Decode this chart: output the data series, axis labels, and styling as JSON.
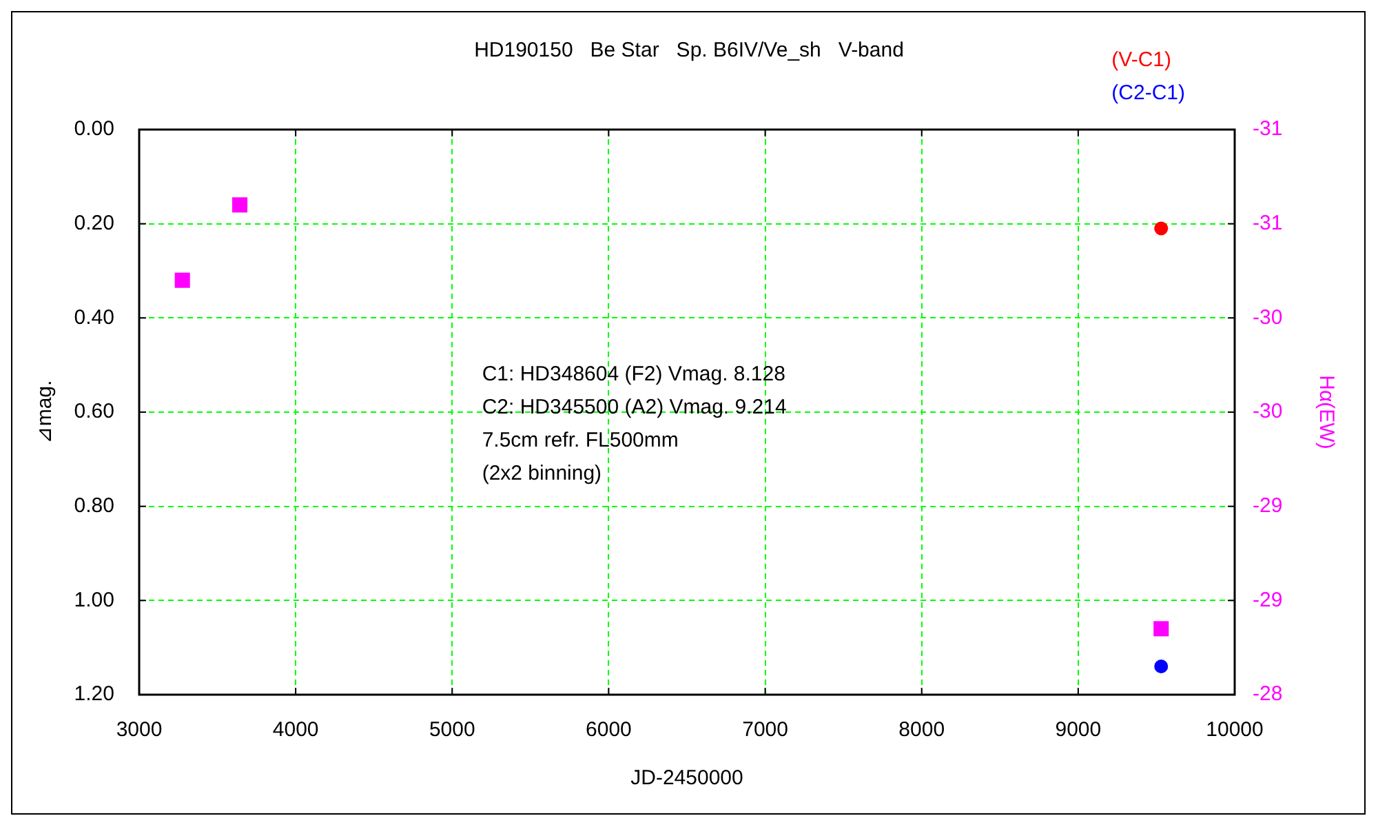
{
  "chart_data": {
    "type": "scatter",
    "title": "HD190150   Be Star   Sp. B6IV/Ve_sh   V-band",
    "xlabel": "JD-2450000",
    "ylabel": "⊿mag.",
    "y2label": "Hα(EW)",
    "annotations": [
      "C1: HD348604 (F2) Vmag. 8.128",
      "C2: HD345500 (A2) Vmag. 9.214",
      "7.5cm refr. FL500mm",
      "(2x2 binning)"
    ],
    "xlim": [
      3000,
      10000
    ],
    "xticks": [
      3000,
      4000,
      5000,
      6000,
      7000,
      8000,
      9000,
      10000
    ],
    "ylim": [
      1.2,
      0
    ],
    "yticks": [
      {
        "value": 0,
        "label": "0.00"
      },
      {
        "value": 0.2,
        "label": "0.20"
      },
      {
        "value": 0.4,
        "label": "0.40"
      },
      {
        "value": 0.6,
        "label": "0.60"
      },
      {
        "value": 0.8,
        "label": "0.80"
      },
      {
        "value": 1,
        "label": "1.00"
      },
      {
        "value": 1.2,
        "label": "1.20"
      }
    ],
    "y2lim": [
      -28,
      -31
    ],
    "y2ticks": [
      -31,
      {
        "value": -30.5,
        "label": "-31"
      },
      -30,
      {
        "value": -29.5,
        "label": "-30"
      },
      -29,
      {
        "value": -28.5,
        "label": "-29"
      },
      -28
    ],
    "grid": true,
    "legend": "top right",
    "series": [
      {
        "color": "#ff00ff",
        "marker": "square",
        "axis": "y2",
        "x": [
          3276,
          3643,
          9530
        ],
        "values": [
          -30.2,
          -30.6,
          -28.35
        ]
      },
      {
        "name": "(V-C1)",
        "color": "#ff0000",
        "marker": "circle",
        "x": [
          9530
        ],
        "values": [
          0.21
        ]
      },
      {
        "name": "(C2-C1)",
        "color": "#0000ff",
        "marker": "circle",
        "x": [
          9530
        ],
        "values": [
          1.14
        ]
      }
    ]
  }
}
